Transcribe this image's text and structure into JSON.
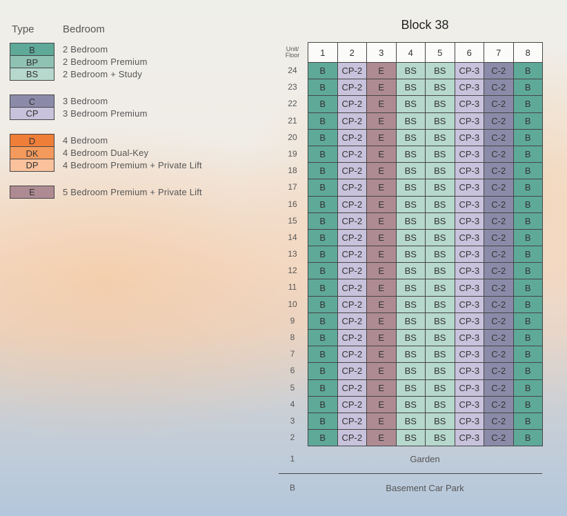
{
  "legend": {
    "type_header": "Type",
    "bedroom_header": "Bedroom",
    "items": [
      {
        "code": "B",
        "label": "2 Bedroom",
        "color": "#5fa999"
      },
      {
        "code": "BP",
        "label": "2 Bedroom Premium",
        "color": "#8fc2b3"
      },
      {
        "code": "BS",
        "label": "2 Bedroom + Study",
        "color": "#b6d8cd"
      },
      {
        "code": "C",
        "label": "3 Bedroom",
        "color": "#8b8ba9"
      },
      {
        "code": "CP",
        "label": "3 Bedroom Premium",
        "color": "#c9c2dc"
      },
      {
        "code": "D",
        "label": "4 Bedroom",
        "color": "#ee7e38"
      },
      {
        "code": "DK",
        "label": "4 Bedroom Dual-Key",
        "color": "#f39a5c"
      },
      {
        "code": "DP",
        "label": "4 Bedroom Premium + Private Lift",
        "color": "#f9c19c"
      },
      {
        "code": "E",
        "label": "5 Bedroom Premium + Private Lift",
        "color": "#ae8b93"
      }
    ]
  },
  "block": {
    "title": "Block 38",
    "floor_header": [
      "Unit/",
      "Floor"
    ],
    "units": [
      "1",
      "2",
      "3",
      "4",
      "5",
      "6",
      "7",
      "8"
    ],
    "unit_types": [
      "B",
      "CP-2",
      "E",
      "BS",
      "BS",
      "CP-3",
      "C-2",
      "B"
    ],
    "unit_type_codes": [
      "B",
      "CP",
      "E",
      "BS",
      "BS",
      "CP",
      "C",
      "B"
    ],
    "floors": [
      "24",
      "23",
      "22",
      "21",
      "20",
      "19",
      "18",
      "17",
      "16",
      "15",
      "14",
      "13",
      "12",
      "11",
      "10",
      "9",
      "8",
      "7",
      "6",
      "5",
      "4",
      "3",
      "2"
    ],
    "ground": {
      "floor": "1",
      "label": "Garden"
    },
    "basement": {
      "floor": "B",
      "label": "Basement Car Park"
    }
  }
}
